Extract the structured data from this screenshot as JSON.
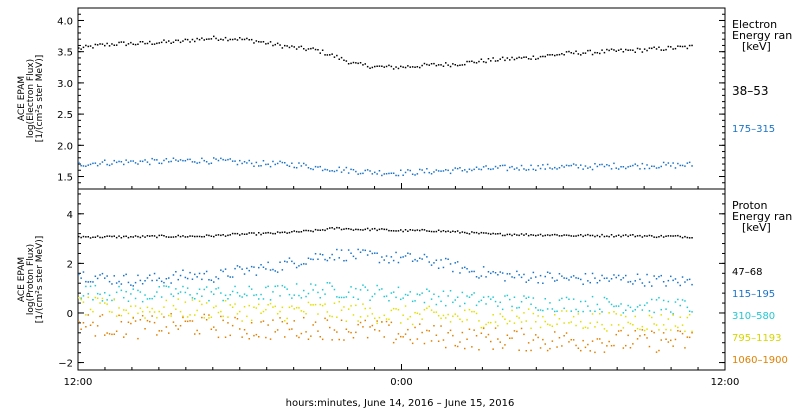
{
  "chart_data": [
    {
      "type": "scatter",
      "panel": "electron",
      "ylabel": [
        "ACE EPAM",
        "log(Electron Flux)",
        "[1/(cm²s ster MeV)]"
      ],
      "yticks": [
        1.5,
        2.0,
        2.5,
        3.0,
        3.5,
        4.0
      ],
      "yticklabels": [
        "1.5",
        "2.0",
        "2.5",
        "3.0",
        "3.5",
        "4.0"
      ],
      "ylim": [
        1.3,
        4.2
      ],
      "legend_title": [
        "Electron",
        "Energy ran",
        "[keV]"
      ],
      "legend_placement": "right",
      "series": [
        {
          "name": "38–53",
          "color": "#000000",
          "values": [
            3.56,
            3.61,
            3.64,
            3.64,
            3.66,
            3.67,
            3.71,
            3.73,
            3.72,
            3.68,
            3.62,
            3.57,
            3.54,
            3.43,
            3.31,
            3.27,
            3.26,
            3.28,
            3.3,
            3.31,
            3.35,
            3.38,
            3.4,
            3.42,
            3.46,
            3.49,
            3.5,
            3.52,
            3.53,
            3.55,
            3.57,
            3.59
          ]
        },
        {
          "name": "175–315",
          "color": "#1a73c8",
          "values": [
            1.71,
            1.73,
            1.74,
            1.75,
            1.75,
            1.76,
            1.77,
            1.76,
            1.74,
            1.72,
            1.71,
            1.7,
            1.66,
            1.63,
            1.6,
            1.58,
            1.57,
            1.58,
            1.6,
            1.61,
            1.63,
            1.64,
            1.65,
            1.66,
            1.66,
            1.67,
            1.67,
            1.68,
            1.68,
            1.69,
            1.69,
            1.7
          ]
        }
      ]
    },
    {
      "type": "scatter",
      "panel": "proton",
      "ylabel": [
        "ACE EPAM",
        "log(Proton Flux)",
        "[1/(cm²s ster MeV)]"
      ],
      "yticks": [
        -2,
        0,
        2,
        4
      ],
      "yticklabels": [
        "−2",
        "0",
        "2",
        "4"
      ],
      "ylim": [
        -2.3,
        5.0
      ],
      "legend_title": [
        "Proton",
        "Energy ran",
        "[keV]"
      ],
      "legend_placement": "right",
      "series": [
        {
          "name": "47–68",
          "color": "#000000",
          "values": [
            3.1,
            3.1,
            3.1,
            3.1,
            3.12,
            3.12,
            3.12,
            3.15,
            3.2,
            3.22,
            3.25,
            3.3,
            3.35,
            3.45,
            3.4,
            3.4,
            3.35,
            3.35,
            3.35,
            3.3,
            3.25,
            3.2,
            3.2,
            3.18,
            3.18,
            3.15,
            3.15,
            3.15,
            3.15,
            3.12,
            3.12,
            3.1
          ]
        },
        {
          "name": "115–195",
          "color": "#1a73c8",
          "values": [
            1.6,
            1.45,
            1.4,
            1.35,
            1.4,
            1.5,
            1.55,
            1.5,
            1.7,
            1.8,
            1.9,
            2.1,
            2.3,
            2.4,
            2.35,
            2.3,
            2.25,
            2.2,
            2.1,
            1.9,
            1.7,
            1.6,
            1.5,
            1.5,
            1.45,
            1.4,
            1.4,
            1.4,
            1.4,
            1.35,
            1.3,
            1.3
          ]
        },
        {
          "name": "310–580",
          "color": "#22c8d2",
          "values": [
            0.9,
            0.85,
            0.8,
            0.75,
            0.8,
            0.85,
            0.85,
            0.8,
            0.8,
            0.8,
            0.85,
            0.9,
            0.95,
            0.95,
            0.9,
            0.85,
            0.8,
            0.75,
            0.7,
            0.6,
            0.55,
            0.5,
            0.45,
            0.45,
            0.4,
            0.4,
            0.4,
            0.35,
            0.35,
            0.35,
            0.3,
            0.3
          ]
        },
        {
          "name": "795–1193",
          "color": "#e0e000",
          "values": [
            0.3,
            0.25,
            0.2,
            0.15,
            0.15,
            0.2,
            0.2,
            0.15,
            0.1,
            0.1,
            0.1,
            0.1,
            0.15,
            0.1,
            0.05,
            0.0,
            -0.05,
            -0.1,
            -0.1,
            -0.15,
            -0.15,
            -0.2,
            -0.2,
            -0.2,
            -0.25,
            -0.25,
            -0.3,
            -0.3,
            -0.3,
            -0.35,
            -0.35,
            -0.35
          ]
        },
        {
          "name": "1060–1900",
          "color": "#e08000",
          "values": [
            -0.4,
            -0.45,
            -0.5,
            -0.55,
            -0.5,
            -0.45,
            -0.45,
            -0.5,
            -0.6,
            -0.6,
            -0.6,
            -0.6,
            -0.55,
            -0.6,
            -0.65,
            -0.7,
            -0.8,
            -0.85,
            -0.9,
            -0.95,
            -1.0,
            -1.0,
            -1.05,
            -1.05,
            -1.1,
            -1.1,
            -1.1,
            -1.1,
            -1.1,
            -1.1,
            -1.1,
            -1.1
          ]
        }
      ]
    }
  ],
  "xaxis": {
    "label": "hours:minutes, June 14, 2016 – June 15, 2016",
    "range_hours": [
      0,
      48
    ],
    "ticks": [
      0,
      24,
      48
    ],
    "ticklabels": [
      "12:00",
      "0:00",
      "12:00"
    ],
    "data_end_hour": 45.5
  }
}
